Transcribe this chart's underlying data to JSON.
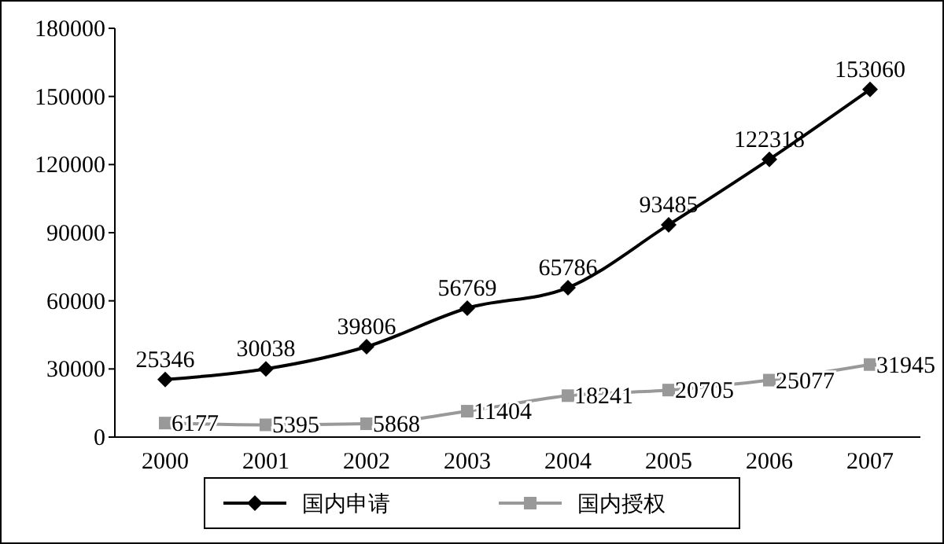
{
  "chart_data": {
    "type": "line",
    "categories": [
      "2000",
      "2001",
      "2002",
      "2003",
      "2004",
      "2005",
      "2006",
      "2007"
    ],
    "series": [
      {
        "name": "国内申请",
        "color": "#000000",
        "marker": "diamond",
        "values": [
          25346,
          30038,
          39806,
          56769,
          65786,
          93485,
          122318,
          153060
        ]
      },
      {
        "name": "国内授权",
        "color": "#999999",
        "marker": "square",
        "values": [
          6177,
          5395,
          5868,
          11404,
          18241,
          20705,
          25077,
          31945
        ]
      }
    ],
    "ylim": [
      0,
      180000
    ],
    "yticks": [
      0,
      30000,
      60000,
      90000,
      120000,
      150000,
      180000
    ],
    "data_labels": true,
    "legend": "bottom"
  }
}
